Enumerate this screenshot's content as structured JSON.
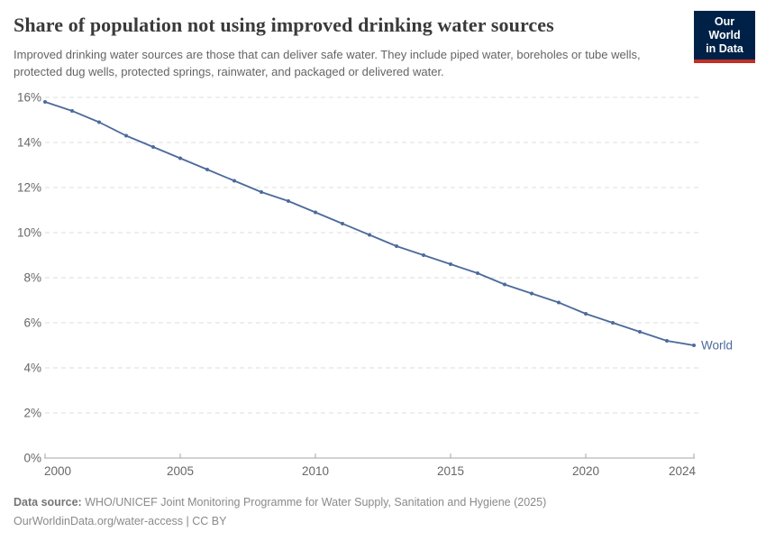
{
  "header": {
    "title": "Share of population not using improved drinking water sources",
    "subtitle": "Improved drinking water sources are those that can deliver safe water. They include piped water, boreholes or tube wells, protected dug wells, protected springs, rainwater, and packaged or delivered water."
  },
  "logo": {
    "line1": "Our World",
    "line2": "in Data"
  },
  "chart_data": {
    "type": "line",
    "title": "Share of population not using improved drinking water sources",
    "x": [
      2000,
      2001,
      2002,
      2003,
      2004,
      2005,
      2006,
      2007,
      2008,
      2009,
      2010,
      2011,
      2012,
      2013,
      2014,
      2015,
      2016,
      2017,
      2018,
      2019,
      2020,
      2021,
      2022,
      2023,
      2024
    ],
    "series": [
      {
        "name": "World",
        "color": "#4c6a9c",
        "values": [
          15.8,
          15.4,
          14.9,
          14.3,
          13.8,
          13.3,
          12.8,
          12.3,
          11.8,
          11.4,
          10.9,
          10.4,
          9.9,
          9.4,
          9.0,
          8.6,
          8.2,
          7.7,
          7.3,
          6.9,
          6.4,
          6.0,
          5.6,
          5.2,
          5.0
        ]
      }
    ],
    "unit": "%",
    "xlabel": "",
    "ylabel": "",
    "ylim": [
      0,
      16
    ],
    "xlim": [
      2000,
      2024
    ],
    "yticks": [
      0,
      2,
      4,
      6,
      8,
      10,
      12,
      14,
      16
    ],
    "ytick_labels": [
      "0%",
      "2%",
      "4%",
      "6%",
      "8%",
      "10%",
      "12%",
      "14%",
      "16%"
    ],
    "xticks": [
      2000,
      2005,
      2010,
      2015,
      2020,
      2024
    ],
    "xtick_labels": [
      "2000",
      "2005",
      "2010",
      "2015",
      "2020",
      "2024"
    ],
    "grid": "horizontal-dashed",
    "legend": "end-of-line-label"
  },
  "footer": {
    "source_label": "Data source:",
    "source_text": "WHO/UNICEF Joint Monitoring Programme for Water Supply, Sanitation and Hygiene (2025)",
    "link_text": "OurWorldinData.org/water-access | CC BY"
  },
  "colors": {
    "line": "#4c6a9c",
    "logo_bg": "#002147",
    "logo_accent": "#bf3026",
    "title_text": "#3a3a3a",
    "subtitle_text": "#646464",
    "axis_text": "#676767",
    "grid": "#dcdcdc",
    "axis_line": "#a5a5a5",
    "footer_text": "#8a8a8a",
    "footer_label": "#757575"
  }
}
